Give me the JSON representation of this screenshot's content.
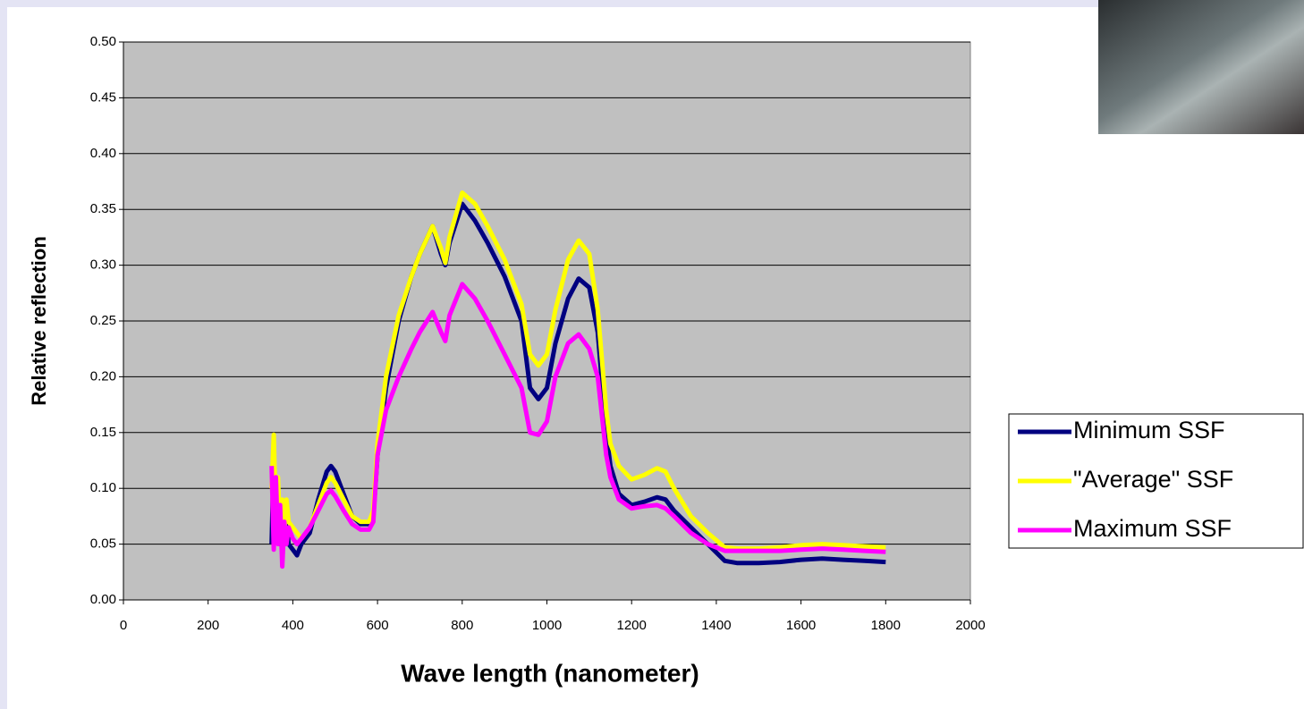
{
  "chart_data": {
    "type": "line",
    "xlabel": "Wave length (nanometer)",
    "ylabel": "Relative reflection",
    "x": [
      350,
      355,
      360,
      365,
      370,
      375,
      380,
      385,
      390,
      400,
      410,
      420,
      440,
      460,
      480,
      490,
      500,
      520,
      540,
      560,
      580,
      590,
      600,
      620,
      650,
      680,
      700,
      730,
      750,
      760,
      770,
      800,
      830,
      860,
      900,
      940,
      960,
      980,
      1000,
      1020,
      1050,
      1075,
      1100,
      1120,
      1140,
      1150,
      1170,
      1200,
      1230,
      1260,
      1280,
      1300,
      1340,
      1380,
      1420,
      1450,
      1500,
      1550,
      1600,
      1650,
      1700,
      1750,
      1800
    ],
    "series": [
      {
        "name": "Minimum SSF",
        "color": "#000080",
        "values": [
          0.05,
          0.13,
          0.06,
          0.09,
          0.05,
          0.06,
          0.05,
          0.07,
          0.05,
          0.045,
          0.04,
          0.05,
          0.06,
          0.09,
          0.115,
          0.12,
          0.115,
          0.095,
          0.075,
          0.068,
          0.068,
          0.075,
          0.13,
          0.19,
          0.25,
          0.29,
          0.31,
          0.335,
          0.31,
          0.3,
          0.32,
          0.355,
          0.34,
          0.32,
          0.29,
          0.25,
          0.19,
          0.18,
          0.19,
          0.23,
          0.27,
          0.288,
          0.28,
          0.24,
          0.15,
          0.12,
          0.095,
          0.085,
          0.088,
          0.092,
          0.09,
          0.08,
          0.065,
          0.05,
          0.035,
          0.033,
          0.033,
          0.034,
          0.036,
          0.037,
          0.036,
          0.035,
          0.034
        ]
      },
      {
        "name": "\"Average\" SSF",
        "color": "#ffff00",
        "values": [
          0.1,
          0.148,
          0.07,
          0.11,
          0.06,
          0.09,
          0.06,
          0.09,
          0.07,
          0.065,
          0.06,
          0.055,
          0.065,
          0.085,
          0.105,
          0.11,
          0.105,
          0.09,
          0.075,
          0.07,
          0.07,
          0.08,
          0.14,
          0.2,
          0.255,
          0.29,
          0.31,
          0.335,
          0.315,
          0.302,
          0.325,
          0.365,
          0.355,
          0.335,
          0.305,
          0.265,
          0.22,
          0.21,
          0.22,
          0.26,
          0.305,
          0.322,
          0.31,
          0.26,
          0.17,
          0.14,
          0.12,
          0.108,
          0.112,
          0.118,
          0.115,
          0.1,
          0.075,
          0.06,
          0.047,
          0.046,
          0.046,
          0.047,
          0.049,
          0.05,
          0.049,
          0.048,
          0.047
        ]
      },
      {
        "name": "Maximum SSF",
        "color": "#ff00ff",
        "values": [
          0.12,
          0.045,
          0.11,
          0.05,
          0.085,
          0.03,
          0.07,
          0.05,
          0.065,
          0.055,
          0.05,
          0.055,
          0.065,
          0.08,
          0.095,
          0.098,
          0.093,
          0.08,
          0.068,
          0.063,
          0.063,
          0.07,
          0.13,
          0.17,
          0.2,
          0.225,
          0.24,
          0.258,
          0.24,
          0.232,
          0.255,
          0.283,
          0.27,
          0.25,
          0.22,
          0.19,
          0.15,
          0.148,
          0.16,
          0.2,
          0.23,
          0.238,
          0.225,
          0.2,
          0.13,
          0.11,
          0.09,
          0.082,
          0.084,
          0.085,
          0.082,
          0.075,
          0.06,
          0.05,
          0.044,
          0.044,
          0.044,
          0.044,
          0.045,
          0.046,
          0.045,
          0.044,
          0.043
        ]
      }
    ],
    "xlim": [
      0,
      2000
    ],
    "xticks": [
      0,
      200,
      400,
      600,
      800,
      1000,
      1200,
      1400,
      1600,
      1800,
      2000
    ],
    "ylim": [
      0,
      0.5
    ],
    "yticks": [
      {
        "value": 0,
        "label": "0.00"
      },
      {
        "value": 0.05,
        "label": "0.05"
      },
      {
        "value": 0.1,
        "label": "0.10"
      },
      {
        "value": 0.15,
        "label": "0.15"
      },
      {
        "value": 0.2,
        "label": "0.20"
      },
      {
        "value": 0.25,
        "label": "0.25"
      },
      {
        "value": 0.3,
        "label": "0.30"
      },
      {
        "value": 0.35,
        "label": "0.35"
      },
      {
        "value": 0.4,
        "label": "0.40"
      },
      {
        "value": 0.45,
        "label": "0.45"
      },
      {
        "value": 0.5,
        "label": "0.50"
      }
    ],
    "grid": true,
    "plot_background": "#c0c0c0",
    "legend": "right"
  }
}
